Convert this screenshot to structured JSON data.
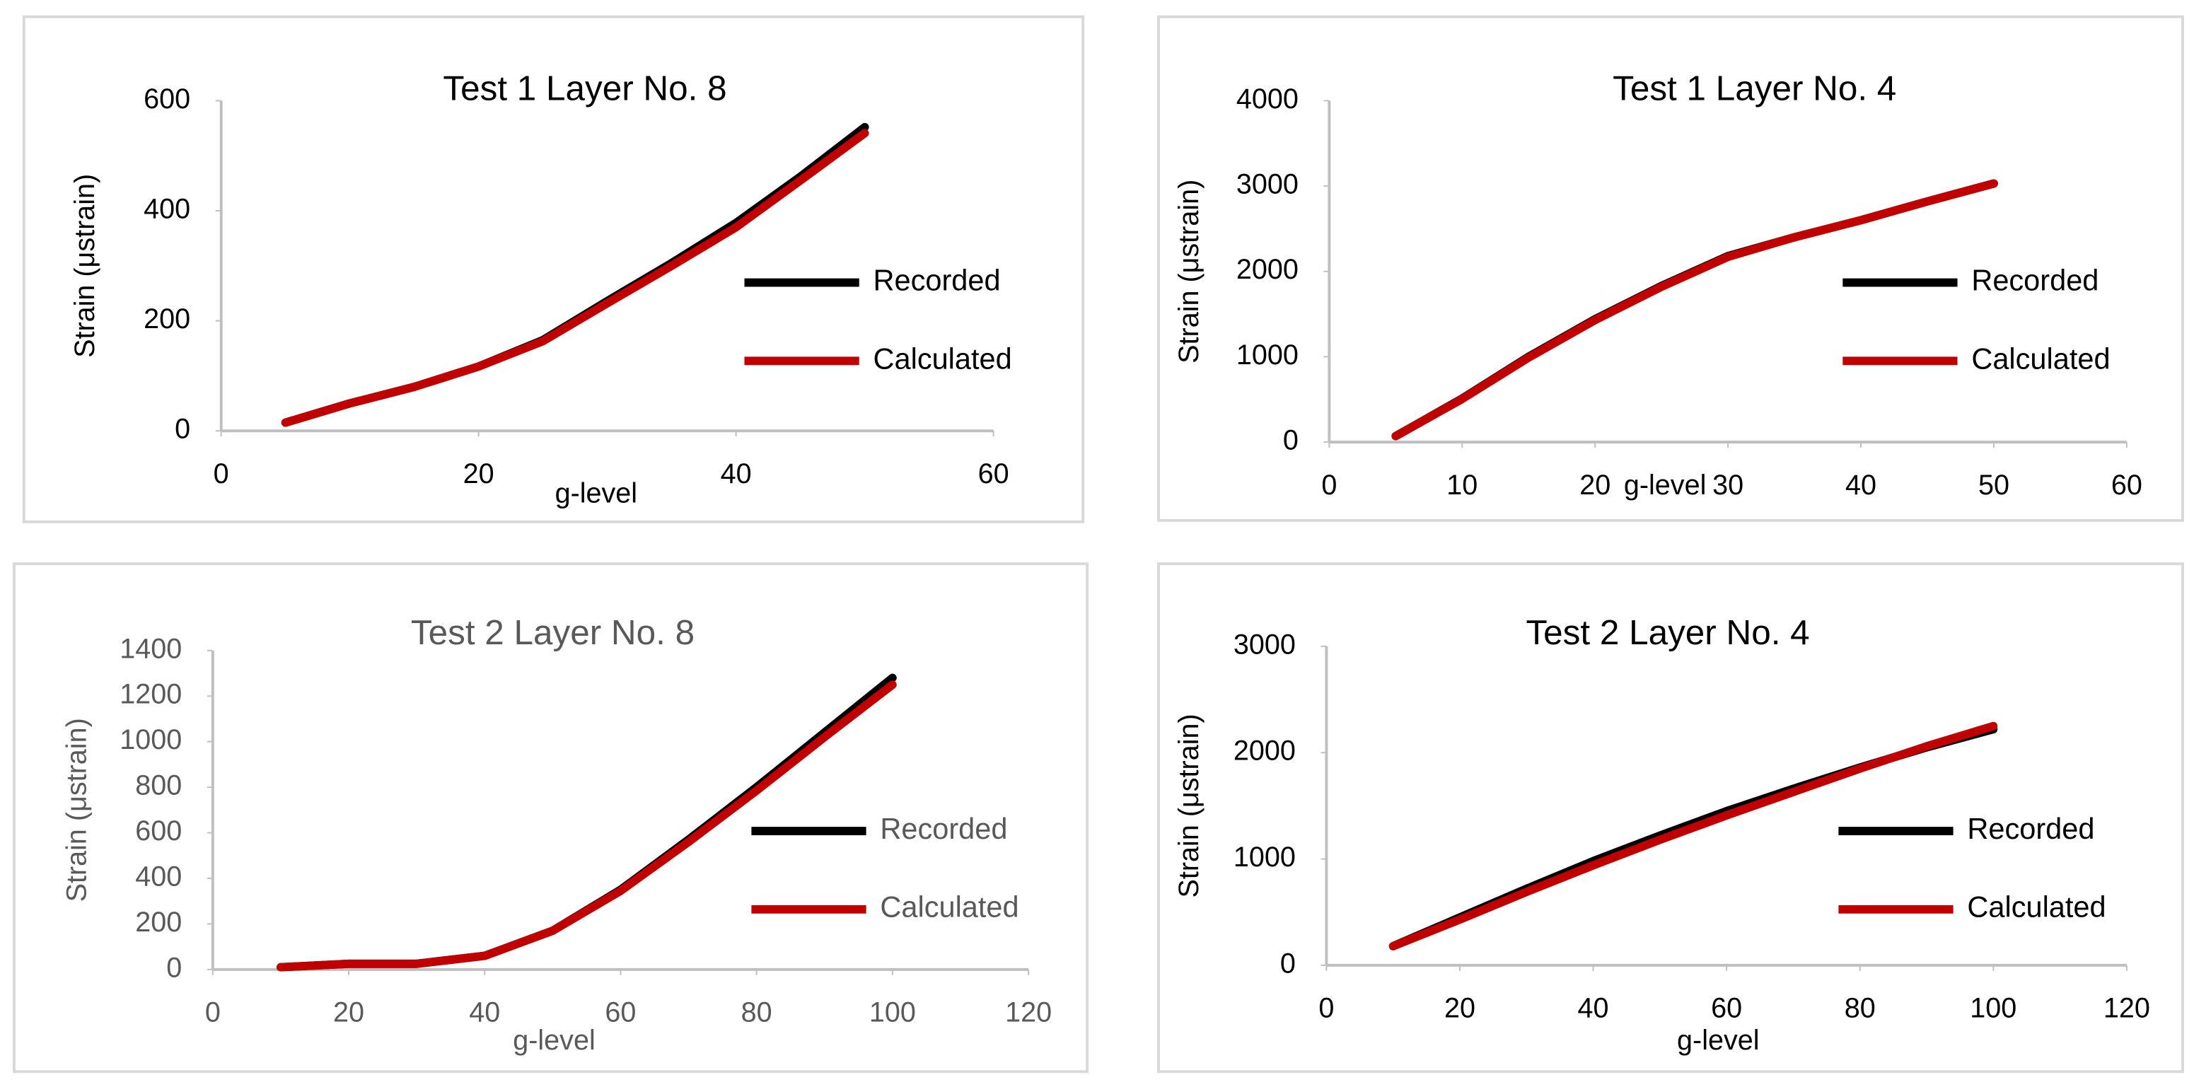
{
  "chart_data": [
    {
      "type": "line",
      "title": "Test 1 Layer No. 8",
      "x_label": "g-level",
      "y_label": "Strain (μstrain)",
      "text_color": "#000000",
      "x": [
        5,
        10,
        15,
        20,
        25,
        30,
        35,
        40,
        45,
        50
      ],
      "series": [
        {
          "name": "Recorded",
          "color": "#000000",
          "values": [
            15,
            50,
            80,
            117,
            165,
            236,
            305,
            378,
            462,
            552
          ]
        },
        {
          "name": "Calculated",
          "color": "#c00000",
          "values": [
            15,
            50,
            80,
            117,
            163,
            232,
            300,
            370,
            455,
            541
          ]
        }
      ],
      "xlim": [
        0,
        60
      ],
      "xticks": [
        0,
        20,
        40,
        60
      ],
      "ylim": [
        0,
        600
      ],
      "yticks": [
        0,
        200,
        400,
        600
      ],
      "legend": "right"
    },
    {
      "type": "line",
      "title": "Test 1 Layer No. 4",
      "x_label": "g-level",
      "y_label": "Strain (μstrain)",
      "text_color": "#000000",
      "x": [
        5,
        10,
        15,
        20,
        25,
        30,
        35,
        40,
        45,
        50
      ],
      "series": [
        {
          "name": "Recorded",
          "color": "#000000",
          "values": [
            70,
            510,
            1000,
            1440,
            1830,
            2180,
            2400,
            2600,
            2820,
            3030
          ]
        },
        {
          "name": "Calculated",
          "color": "#c00000",
          "values": [
            70,
            505,
            990,
            1430,
            1820,
            2170,
            2400,
            2600,
            2820,
            3030
          ]
        }
      ],
      "xlim": [
        0,
        60
      ],
      "xticks": [
        0,
        10,
        20,
        30,
        40,
        50,
        60
      ],
      "ylim": [
        0,
        4000
      ],
      "yticks": [
        0,
        1000,
        2000,
        3000,
        4000
      ],
      "legend": "right"
    },
    {
      "type": "line",
      "title": "Test 2 Layer No. 8",
      "x_label": "g-level",
      "y_label": "Strain (μstrain)",
      "text_color": "#595959",
      "x": [
        10,
        20,
        30,
        40,
        50,
        60,
        70,
        80,
        90,
        100
      ],
      "series": [
        {
          "name": "Recorded",
          "color": "#000000",
          "values": [
            10,
            25,
            25,
            60,
            170,
            350,
            570,
            800,
            1040,
            1280
          ]
        },
        {
          "name": "Calculated",
          "color": "#c00000",
          "values": [
            10,
            25,
            25,
            60,
            170,
            345,
            560,
            785,
            1020,
            1250
          ]
        }
      ],
      "xlim": [
        0,
        120
      ],
      "xticks": [
        0,
        20,
        40,
        60,
        80,
        100,
        120
      ],
      "ylim": [
        0,
        1400
      ],
      "yticks": [
        0,
        200,
        400,
        600,
        800,
        1000,
        1200,
        1400
      ],
      "legend": "right"
    },
    {
      "type": "line",
      "title": "Test 2 Layer No. 4",
      "x_label": "g-level",
      "y_label": "Strain (μstrain)",
      "text_color": "#000000",
      "x": [
        10,
        20,
        30,
        40,
        50,
        60,
        70,
        80,
        90,
        100
      ],
      "series": [
        {
          "name": "Recorded",
          "color": "#000000",
          "values": [
            180,
            450,
            720,
            980,
            1220,
            1450,
            1660,
            1860,
            2050,
            2220
          ]
        },
        {
          "name": "Calculated",
          "color": "#c00000",
          "values": [
            180,
            430,
            690,
            940,
            1180,
            1410,
            1630,
            1850,
            2060,
            2250
          ]
        }
      ],
      "xlim": [
        0,
        120
      ],
      "xticks": [
        0,
        20,
        40,
        60,
        80,
        100,
        120
      ],
      "ylim": [
        0,
        3000
      ],
      "yticks": [
        0,
        1000,
        2000,
        3000
      ],
      "legend": "right"
    }
  ]
}
